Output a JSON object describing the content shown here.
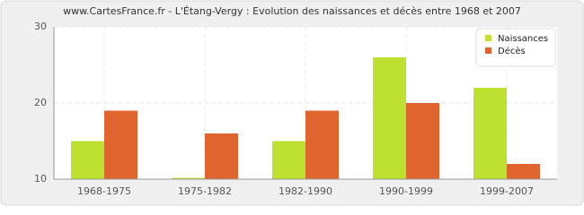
{
  "chart_data": {
    "type": "bar",
    "title": "www.CartesFrance.fr - L'Étang-Vergy : Evolution des naissances et décès entre 1968 et 2007",
    "categories": [
      "1968-1975",
      "1975-1982",
      "1982-1990",
      "1990-1999",
      "1999-2007"
    ],
    "series": [
      {
        "name": "Naissances",
        "color": "#bde12e",
        "values": [
          15,
          10,
          15,
          26,
          22
        ]
      },
      {
        "name": "Décès",
        "color": "#e0642e",
        "values": [
          19,
          16,
          19,
          20,
          12
        ]
      }
    ],
    "ylim": [
      10,
      30
    ],
    "yticks": [
      10,
      20,
      30
    ],
    "grid": true,
    "legend": "top-right"
  }
}
